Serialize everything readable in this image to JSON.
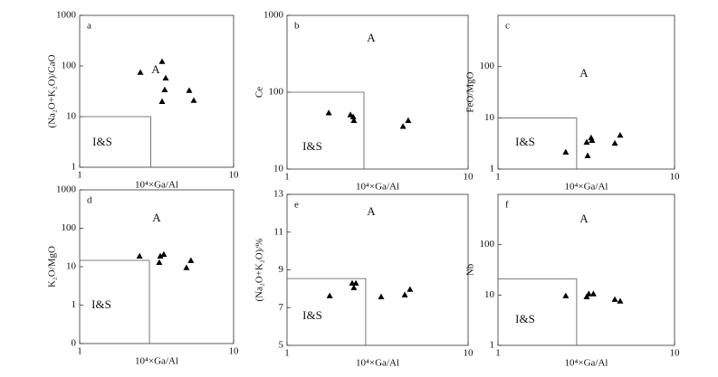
{
  "chart_data": [
    {
      "type": "scatter",
      "panel_label": "a",
      "region_labels": [
        "A",
        "I&S"
      ],
      "x_label": "10⁴×Ga/Al",
      "y_label": "(Na₂O+K₂O)/CaO",
      "x": [
        2.48,
        3.43,
        3.62,
        3.57,
        3.43,
        5.15,
        5.51
      ],
      "values": [
        75,
        123,
        58,
        34,
        20,
        33,
        21
      ],
      "color": "#000000",
      "log_x": true,
      "log_y": true,
      "xlim": [
        1,
        10
      ],
      "xticks": [
        1,
        10
      ],
      "ylim": [
        1,
        1000
      ],
      "yticks": [
        1,
        10,
        100,
        1000
      ],
      "boundary": {
        "x": 2.9,
        "y": 10
      }
    },
    {
      "type": "scatter",
      "panel_label": "b",
      "region_labels": [
        "A",
        "I&S"
      ],
      "x_label": "10⁴×Ga/Al",
      "y_label": "Ce",
      "x": [
        1.7,
        2.24,
        2.32,
        2.34,
        4.37,
        4.67
      ],
      "values": [
        54,
        51,
        48,
        43,
        36,
        43
      ],
      "color": "#000000",
      "log_x": true,
      "log_y": true,
      "xlim": [
        1,
        10
      ],
      "xticks": [
        1,
        10
      ],
      "ylim": [
        10,
        1000
      ],
      "yticks": [
        10,
        100,
        1000
      ],
      "boundary": {
        "x": 2.66,
        "y": 100
      }
    },
    {
      "type": "scatter",
      "panel_label": "c",
      "region_labels": [
        "A",
        "I&S"
      ],
      "x_label": "10⁴×Ga/Al",
      "y_label": "FeO/MgO",
      "x": [
        2.42,
        3.18,
        3.37,
        3.22,
        3.41,
        4.59,
        4.92
      ],
      "values": [
        2.15,
        3.36,
        4.1,
        1.83,
        3.64,
        3.2,
        4.6
      ],
      "color": "#000000",
      "log_x": true,
      "log_y": true,
      "xlim": [
        1,
        10
      ],
      "xticks": [
        1,
        10
      ],
      "ylim": [
        1,
        1000
      ],
      "yticks": [
        1,
        10,
        100
      ],
      "boundary": {
        "x": 2.79,
        "y": 10
      }
    },
    {
      "type": "scatter",
      "panel_label": "d",
      "region_labels": [
        "A",
        "I&S"
      ],
      "x_label": "10⁴×Ga/Al",
      "y_label": "K₂O/MgO",
      "x": [
        2.45,
        3.34,
        3.52,
        3.29,
        4.94,
        5.28
      ],
      "values": [
        19,
        19,
        21,
        13,
        9.5,
        14.6
      ],
      "color": "#000000",
      "log_x": true,
      "log_y": true,
      "xlim": [
        1,
        10
      ],
      "xticks": [
        1,
        10
      ],
      "ylim": [
        0.1,
        1000
      ],
      "yticks": [
        {
          "value": 0.1,
          "label": "0"
        },
        1,
        10,
        100,
        1000
      ],
      "boundary": {
        "x": 2.84,
        "y": 14.6
      }
    },
    {
      "type": "scatter",
      "panel_label": "e",
      "region_labels": [
        "A",
        "I&S"
      ],
      "x_label": "10⁴×Ga/Al",
      "y_label": "(Na₂O+K₂O)/%",
      "x": [
        1.72,
        2.29,
        2.34,
        2.4,
        3.31,
        4.47,
        4.78
      ],
      "values": [
        7.63,
        8.3,
        8.06,
        8.3,
        7.58,
        7.68,
        7.97
      ],
      "color": "#000000",
      "log_x": true,
      "log_y": false,
      "xlim": [
        1,
        10
      ],
      "xticks": [
        1,
        10
      ],
      "ylim": [
        5,
        13
      ],
      "yticks": [
        5,
        7,
        9,
        11,
        13
      ],
      "boundary": {
        "x": 2.72,
        "y": 8.54
      }
    },
    {
      "type": "scatter",
      "panel_label": "f",
      "region_labels": [
        "A",
        "I&S"
      ],
      "x_label": "10⁴×Ga/Al",
      "y_label": "Nb",
      "x": [
        2.42,
        3.18,
        3.27,
        3.47,
        4.59,
        4.92
      ],
      "values": [
        9.7,
        9.3,
        10.6,
        10.6,
        8.2,
        7.6
      ],
      "color": "#000000",
      "log_x": true,
      "log_y": true,
      "xlim": [
        1,
        10
      ],
      "xticks": [
        1,
        10
      ],
      "ylim": [
        1,
        1000
      ],
      "yticks": [
        1,
        10,
        100
      ],
      "boundary": {
        "x": 2.79,
        "y": 21
      }
    }
  ]
}
